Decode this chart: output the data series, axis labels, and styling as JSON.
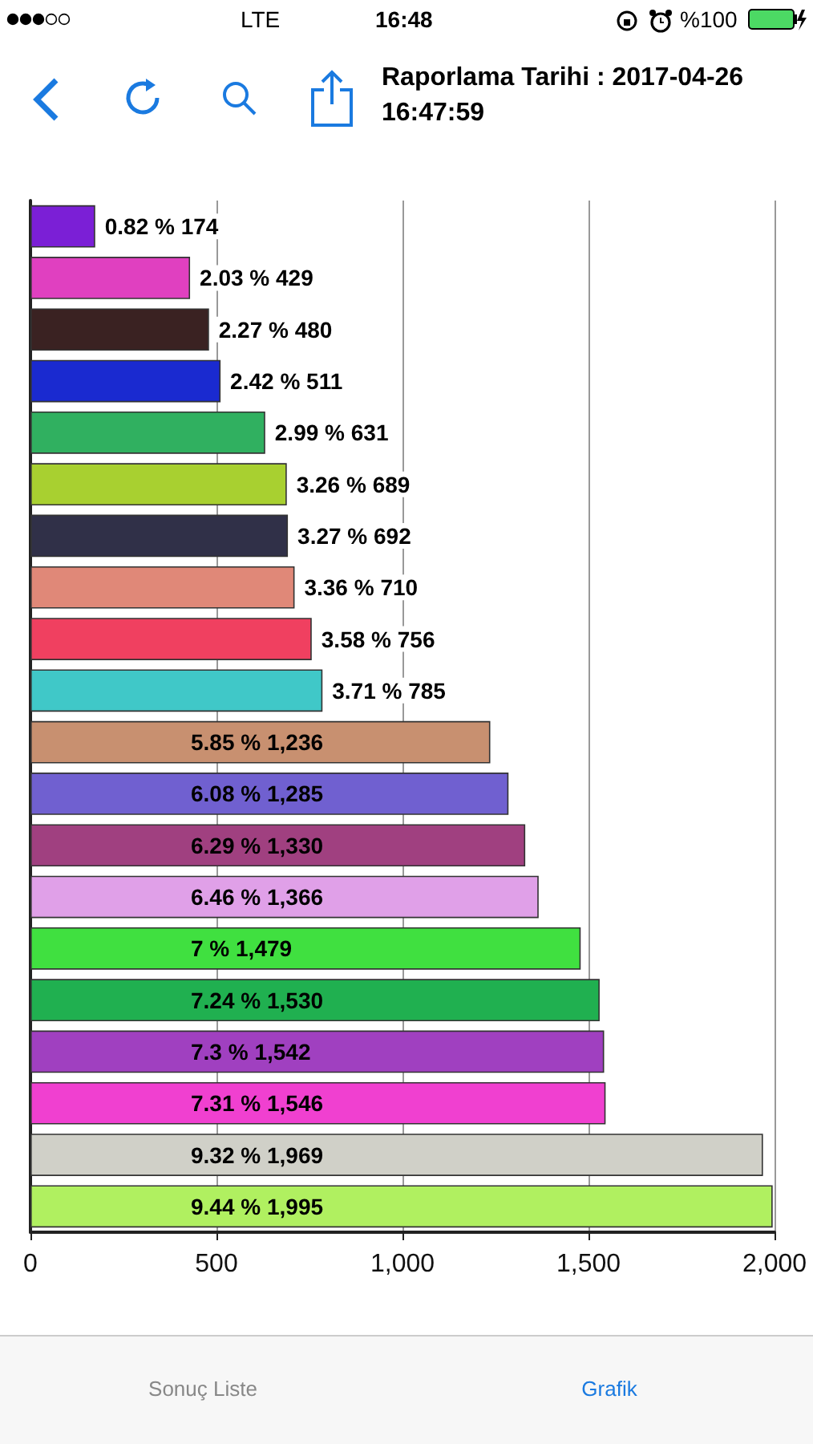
{
  "chart_data": {
    "type": "bar",
    "orientation": "horizontal",
    "title": "Raporlama Tarihi : 2017-04-26 16:47:59",
    "categories": [
      null,
      null,
      null,
      null,
      null,
      null,
      null,
      null,
      null,
      null,
      null,
      null,
      null,
      null,
      null,
      null,
      null,
      null,
      null,
      null
    ],
    "values": [
      174,
      429,
      480,
      511,
      631,
      689,
      692,
      710,
      756,
      785,
      1236,
      1285,
      1330,
      1366,
      1479,
      1530,
      1542,
      1546,
      1969,
      1995
    ],
    "colors": [
      "#7b1fd6",
      "#e040c0",
      "#3a2222",
      "#1a2ad0",
      "#30b060",
      "#a8d030",
      "#303048",
      "#e08878",
      "#f04060",
      "#40c8c8",
      "#c89070",
      "#7060d0",
      "#a04080",
      "#e0a0e8",
      "#40e040",
      "#20b050",
      "#a040c0",
      "#f040d0",
      "#d0d0c8",
      "#b0f060"
    ],
    "value_labels": [
      "0.82 % 174",
      "2.03 % 429",
      "2.27 % 480",
      "2.42 % 511",
      "2.99 % 631",
      "3.26 % 689",
      "3.27 % 692",
      "3.36 % 710",
      "3.58 % 756",
      "3.71 % 785",
      "5.85 % 1,236",
      "6.08 % 1,285",
      "6.29 % 1,330",
      "6.46 % 1,366",
      "7 % 1,479",
      "7.24 % 1,530",
      "7.3 % 1,542",
      "7.31 % 1,546",
      "9.32 % 1,969",
      "9.44 % 1,995"
    ],
    "xlim": [
      0,
      2000
    ],
    "xticks": [
      0,
      500,
      {
        "value": 1000,
        "label": "1,000"
      },
      {
        "value": 1500,
        "label": "1,500"
      },
      {
        "value": 2000,
        "label": "2,000"
      }
    ],
    "grid": "x",
    "annotations": [
      "LTE",
      "16:48",
      "%100",
      "Sonuç Liste",
      "Grafik"
    ]
  }
}
